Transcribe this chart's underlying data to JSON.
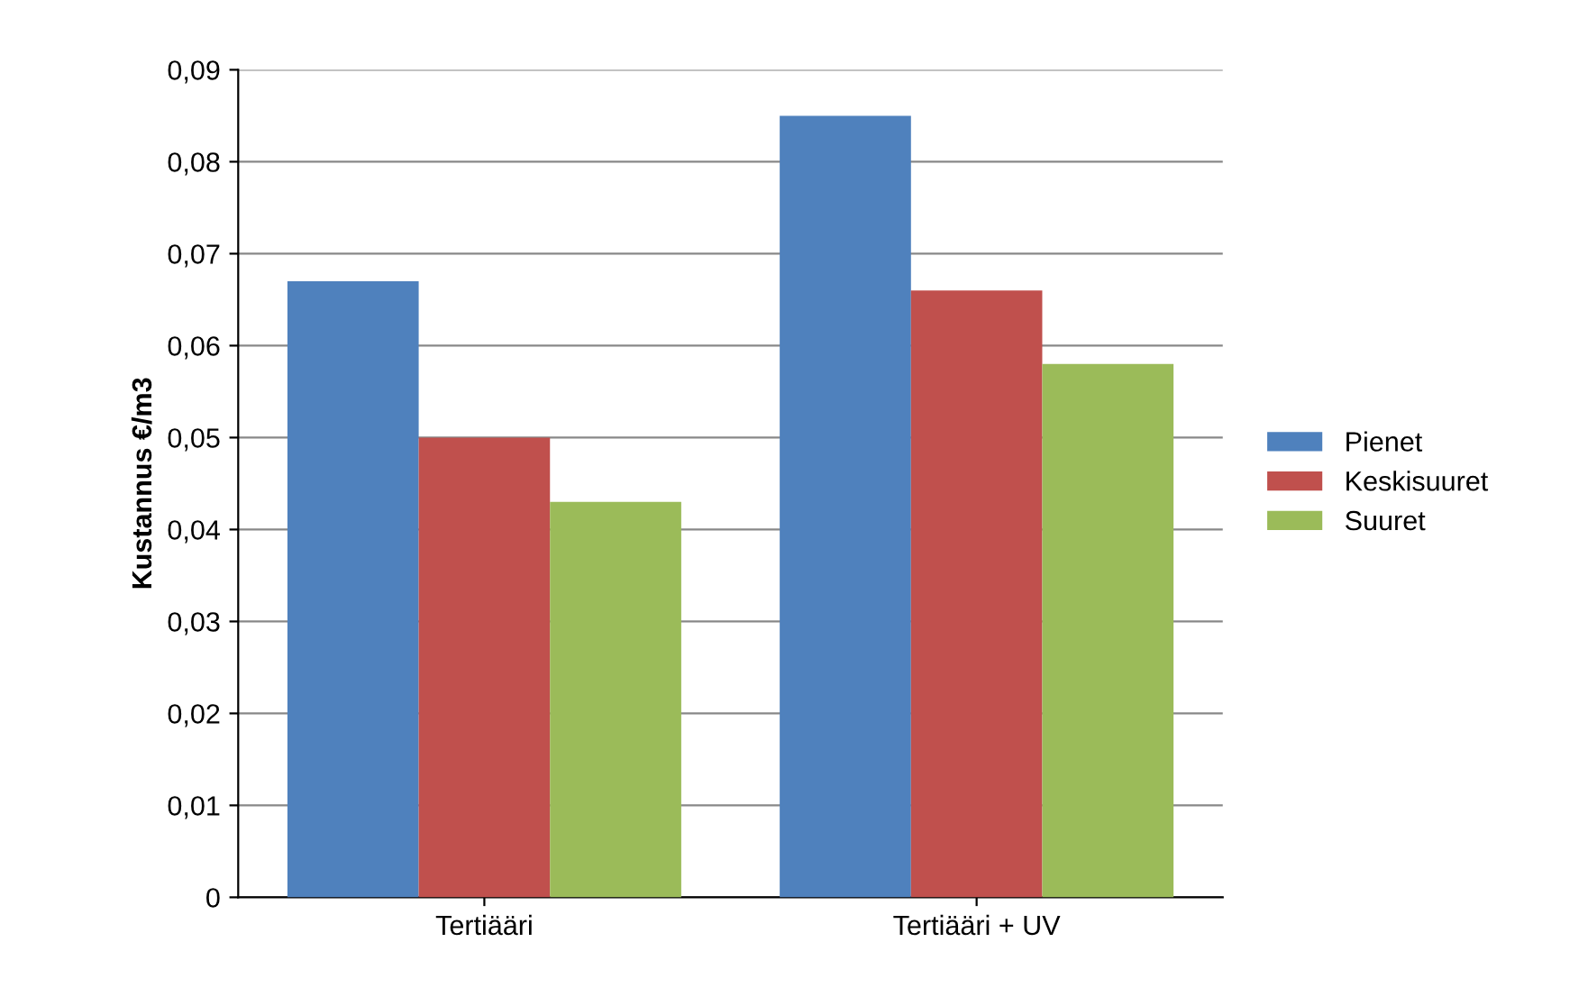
{
  "chart_data": {
    "type": "bar",
    "ylabel": "Kustannus €/m3",
    "categories": [
      "Tertiääri",
      "Tertiääri + UV"
    ],
    "series": [
      {
        "name": "Pienet",
        "color": "#4f81bd",
        "values": [
          0.067,
          0.085
        ]
      },
      {
        "name": "Keskisuuret",
        "color": "#c0504d",
        "values": [
          0.05,
          0.066
        ]
      },
      {
        "name": "Suuret",
        "color": "#9bbb59",
        "values": [
          0.043,
          0.058
        ]
      }
    ],
    "ylim": [
      0,
      0.09
    ],
    "yticks": [
      {
        "value": 0,
        "label": "0"
      },
      {
        "value": 0.01,
        "label": "0,01"
      },
      {
        "value": 0.02,
        "label": "0,02"
      },
      {
        "value": 0.03,
        "label": "0,03"
      },
      {
        "value": 0.04,
        "label": "0,04"
      },
      {
        "value": 0.05,
        "label": "0,05"
      },
      {
        "value": 0.06,
        "label": "0,06"
      },
      {
        "value": 0.07,
        "label": "0,07"
      },
      {
        "value": 0.08,
        "label": "0,08"
      },
      {
        "value": 0.09,
        "label": "0,09"
      }
    ],
    "grid": "y",
    "legend": "right"
  }
}
